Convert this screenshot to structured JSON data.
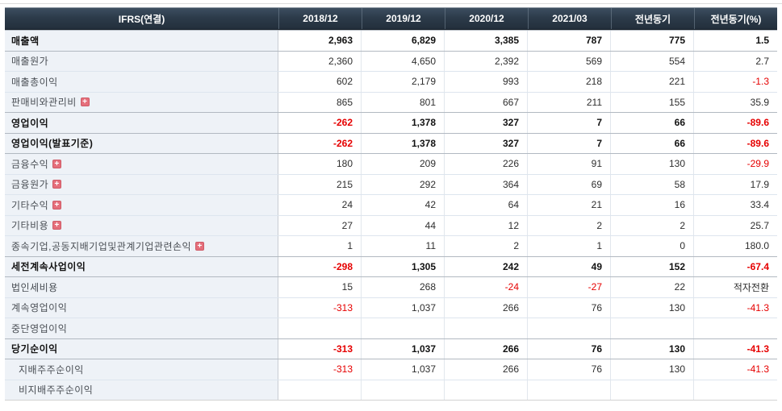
{
  "table": {
    "header": {
      "label": "IFRS(연결)",
      "columns": [
        "2018/12",
        "2019/12",
        "2020/12",
        "2021/03",
        "전년동기",
        "전년동기(%)"
      ]
    },
    "colors": {
      "header_bg": "#2c3b4a",
      "label_bg": "#eef2f7",
      "negative_value": "#e60000",
      "expand_icon_bg": "#e56f7b"
    },
    "rows": [
      {
        "label": "매출액",
        "style": "section",
        "values": [
          "2,963",
          "6,829",
          "3,385",
          "787",
          "775",
          "1.5"
        ]
      },
      {
        "label": "매출원가",
        "values": [
          "2,360",
          "4,650",
          "2,392",
          "569",
          "554",
          "2.7"
        ]
      },
      {
        "label": "매출총이익",
        "values": [
          "602",
          "2,179",
          "993",
          "218",
          "221",
          {
            "v": "-1.3",
            "red": true
          }
        ]
      },
      {
        "label": "판매비와관리비",
        "expand": true,
        "values": [
          "865",
          "801",
          "667",
          "211",
          "155",
          "35.9"
        ]
      },
      {
        "label": "영업이익",
        "style": "section",
        "values": [
          {
            "v": "-262",
            "red": true
          },
          "1,378",
          "327",
          "7",
          "66",
          {
            "v": "-89.6",
            "red": true
          }
        ]
      },
      {
        "label": "영업이익(발표기준)",
        "style": "section",
        "values": [
          {
            "v": "-262",
            "red": true
          },
          "1,378",
          "327",
          "7",
          "66",
          {
            "v": "-89.6",
            "red": true
          }
        ]
      },
      {
        "label": "금융수익",
        "expand": true,
        "values": [
          "180",
          "209",
          "226",
          "91",
          "130",
          {
            "v": "-29.9",
            "red": true
          }
        ]
      },
      {
        "label": "금융원가",
        "expand": true,
        "values": [
          "215",
          "292",
          "364",
          "69",
          "58",
          "17.9"
        ]
      },
      {
        "label": "기타수익",
        "expand": true,
        "values": [
          "24",
          "42",
          "64",
          "21",
          "16",
          "33.4"
        ]
      },
      {
        "label": "기타비용",
        "expand": true,
        "values": [
          "27",
          "44",
          "12",
          "2",
          "2",
          "25.7"
        ]
      },
      {
        "label": "종속기업,공동지배기업및관계기업관련손익",
        "expand": true,
        "values": [
          "1",
          "11",
          "2",
          "1",
          "0",
          "180.0"
        ]
      },
      {
        "label": "세전계속사업이익",
        "style": "section",
        "values": [
          {
            "v": "-298",
            "red": true
          },
          "1,305",
          "242",
          "49",
          "152",
          {
            "v": "-67.4",
            "red": true
          }
        ]
      },
      {
        "label": "법인세비용",
        "values": [
          "15",
          "268",
          {
            "v": "-24",
            "red": true
          },
          {
            "v": "-27",
            "red": true
          },
          "22",
          "적자전환"
        ]
      },
      {
        "label": "계속영업이익",
        "values": [
          {
            "v": "-313",
            "red": true
          },
          "1,037",
          "266",
          "76",
          "130",
          {
            "v": "-41.3",
            "red": true
          }
        ]
      },
      {
        "label": "중단영업이익",
        "values": [
          "",
          "",
          "",
          "",
          "",
          ""
        ]
      },
      {
        "label": "당기순이익",
        "style": "section",
        "values": [
          {
            "v": "-313",
            "red": true
          },
          "1,037",
          "266",
          "76",
          "130",
          {
            "v": "-41.3",
            "red": true
          }
        ]
      },
      {
        "label": "지배주주순이익",
        "indent": true,
        "values": [
          {
            "v": "-313",
            "red": true
          },
          "1,037",
          "266",
          "76",
          "130",
          {
            "v": "-41.3",
            "red": true
          }
        ]
      },
      {
        "label": "비지배주주순이익",
        "indent": true,
        "values": [
          "",
          "",
          "",
          "",
          "",
          ""
        ]
      }
    ]
  }
}
